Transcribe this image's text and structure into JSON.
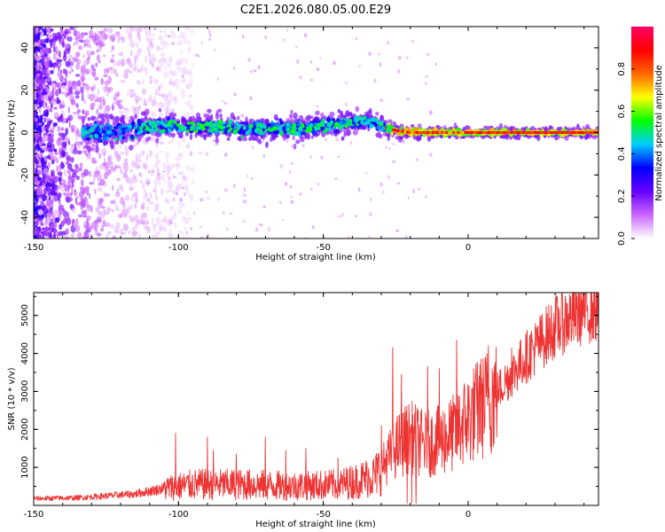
{
  "figure_title": "C2E1.2026.080.05.00.E29",
  "chart_data": [
    {
      "type": "heatmap",
      "title": "C2E1.2026.080.05.00.E29",
      "xlabel": "Height of straight line (km)",
      "ylabel": "Frequency (Hz)",
      "xlim": [
        -150,
        45
      ],
      "ylim": [
        -50,
        50
      ],
      "xticks": [
        -150,
        -100,
        -50,
        0
      ],
      "xtick_labels": [
        "-150",
        "-100",
        "-50",
        "0"
      ],
      "yticks": [
        -40,
        -20,
        0,
        20,
        40
      ],
      "ytick_labels": [
        "-40",
        "-20",
        "0",
        "20",
        "40"
      ],
      "ridge": {
        "description": "dominant spectral ridge",
        "x": [
          -132,
          -125,
          -118,
          -110,
          -100,
          -90,
          -80,
          -70,
          -60,
          -50,
          -40,
          -35,
          -30,
          -25,
          -20,
          -10,
          0,
          10,
          20,
          30,
          44
        ],
        "center_hz": [
          0,
          0,
          1,
          3,
          3,
          3,
          2,
          2,
          2,
          3,
          5,
          6,
          3,
          1,
          0,
          0,
          0,
          0,
          0,
          0,
          0
        ],
        "half_width_hz": [
          4,
          4.5,
          4,
          3.5,
          3,
          3,
          3,
          3,
          3,
          3,
          3,
          2.5,
          2.5,
          1.8,
          1.6,
          1.4,
          1.2,
          1.2,
          1.2,
          1.2,
          1.2
        ]
      },
      "colorbar": {
        "label": "Normalized spectral amplitude",
        "range": [
          0,
          1
        ],
        "ticks": [
          0.0,
          0.2,
          0.4,
          0.6,
          0.8
        ],
        "tick_labels": [
          "0.0",
          "0.2",
          "0.4",
          "0.6",
          "0.8"
        ],
        "colors": [
          "#ffffff",
          "#cc66ff",
          "#6600ff",
          "#0000ff",
          "#00ccff",
          "#00ff00",
          "#ffff00",
          "#ff6600",
          "#ff0000",
          "#ff0066"
        ]
      }
    },
    {
      "type": "line",
      "xlabel": "Height of straight line (km)",
      "ylabel": "SNR (10 * v/v)",
      "xlim": [
        -150,
        45
      ],
      "ylim": [
        0,
        5600
      ],
      "xticks": [
        -150,
        -100,
        -50,
        0
      ],
      "xtick_labels": [
        "-150",
        "-100",
        "-50",
        "0"
      ],
      "yticks": [
        1000,
        2000,
        3000,
        4000,
        5000
      ],
      "ytick_labels": [
        "1000",
        "2000",
        "3000",
        "4000",
        "5000"
      ],
      "series": [
        {
          "name": "SNR",
          "color": "#ee3333",
          "envelope_x": [
            -150,
            -135,
            -125,
            -115,
            -105,
            -95,
            -85,
            -75,
            -65,
            -55,
            -45,
            -38,
            -32,
            -28,
            -24,
            -20,
            -15,
            -10,
            -5,
            0,
            5,
            10,
            20,
            30,
            40,
            45
          ],
          "envelope_y": [
            180,
            200,
            250,
            300,
            450,
            550,
            550,
            550,
            520,
            520,
            550,
            650,
            800,
            1200,
            1600,
            1800,
            1600,
            1700,
            1900,
            2300,
            2600,
            3000,
            3900,
            4700,
            5150,
            5200
          ],
          "spike_x": [
            -101,
            -90,
            -88,
            -80,
            -70,
            -63,
            -56,
            -45,
            -30,
            -26,
            -23,
            -21,
            -18,
            -14,
            -10,
            -4,
            4,
            7,
            15,
            22
          ],
          "spike_y": [
            1900,
            1800,
            1450,
            1350,
            1800,
            1450,
            1500,
            1250,
            2100,
            4150,
            3450,
            3000,
            3600,
            3650,
            3600,
            4350,
            3700,
            4200,
            4150,
            4500
          ]
        }
      ]
    }
  ]
}
